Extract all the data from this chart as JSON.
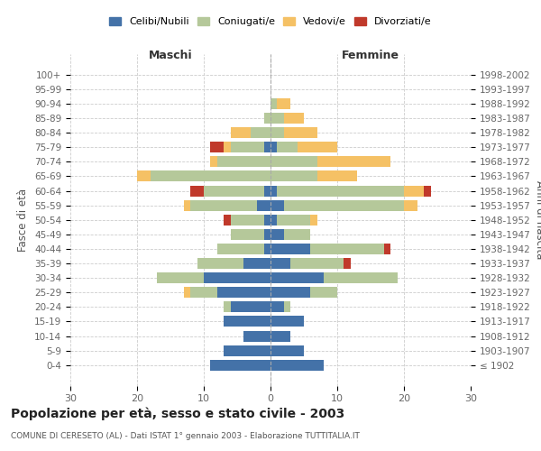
{
  "age_groups": [
    "100+",
    "95-99",
    "90-94",
    "85-89",
    "80-84",
    "75-79",
    "70-74",
    "65-69",
    "60-64",
    "55-59",
    "50-54",
    "45-49",
    "40-44",
    "35-39",
    "30-34",
    "25-29",
    "20-24",
    "15-19",
    "10-14",
    "5-9",
    "0-4"
  ],
  "birth_years": [
    "≤ 1902",
    "1903-1907",
    "1908-1912",
    "1913-1917",
    "1918-1922",
    "1923-1927",
    "1928-1932",
    "1933-1937",
    "1938-1942",
    "1943-1947",
    "1948-1952",
    "1953-1957",
    "1958-1962",
    "1963-1967",
    "1968-1972",
    "1973-1977",
    "1978-1982",
    "1983-1987",
    "1988-1992",
    "1993-1997",
    "1998-2002"
  ],
  "male": {
    "celibi": [
      0,
      0,
      0,
      0,
      0,
      1,
      0,
      0,
      1,
      2,
      1,
      1,
      1,
      4,
      10,
      8,
      6,
      7,
      4,
      7,
      9
    ],
    "coniugati": [
      0,
      0,
      0,
      1,
      3,
      5,
      8,
      18,
      9,
      10,
      5,
      5,
      7,
      7,
      7,
      4,
      1,
      0,
      0,
      0,
      0
    ],
    "vedovi": [
      0,
      0,
      0,
      0,
      3,
      1,
      1,
      2,
      0,
      1,
      0,
      0,
      0,
      0,
      0,
      1,
      0,
      0,
      0,
      0,
      0
    ],
    "divorziati": [
      0,
      0,
      0,
      0,
      0,
      2,
      0,
      0,
      2,
      0,
      1,
      0,
      0,
      0,
      0,
      0,
      0,
      0,
      0,
      0,
      0
    ]
  },
  "female": {
    "nubili": [
      0,
      0,
      0,
      0,
      0,
      1,
      0,
      0,
      1,
      2,
      1,
      2,
      6,
      3,
      8,
      6,
      2,
      5,
      3,
      5,
      8
    ],
    "coniugate": [
      0,
      0,
      1,
      2,
      2,
      3,
      7,
      7,
      19,
      18,
      5,
      4,
      11,
      8,
      11,
      4,
      1,
      0,
      0,
      0,
      0
    ],
    "vedove": [
      0,
      0,
      2,
      3,
      5,
      6,
      11,
      6,
      3,
      2,
      1,
      0,
      0,
      0,
      0,
      0,
      0,
      0,
      0,
      0,
      0
    ],
    "divorziate": [
      0,
      0,
      0,
      0,
      0,
      0,
      0,
      0,
      1,
      0,
      0,
      0,
      1,
      1,
      0,
      0,
      0,
      0,
      0,
      0,
      0
    ]
  },
  "colors": {
    "celibi": "#4472a8",
    "coniugati": "#b5c89a",
    "vedovi": "#f5c165",
    "divorziati": "#c0392b"
  },
  "xlim": 30,
  "title": "Popolazione per età, sesso e stato civile - 2003",
  "subtitle": "COMUNE DI CERESETO (AL) - Dati ISTAT 1° gennaio 2003 - Elaborazione TUTTITALIA.IT",
  "ylabel_left": "Fasce di età",
  "ylabel_right": "Anni di nascita",
  "xlabel_left": "Maschi",
  "xlabel_right": "Femmine"
}
